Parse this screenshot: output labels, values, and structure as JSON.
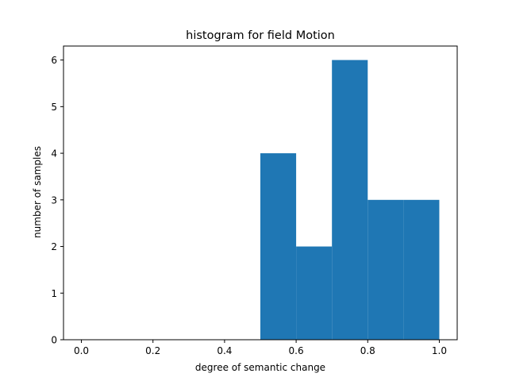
{
  "chart_data": {
    "type": "bar",
    "title": "histogram for field Motion",
    "xlabel": "degree of semantic change",
    "ylabel": "number of samples",
    "bins": [
      {
        "start": 0.5,
        "end": 0.6,
        "count": 4
      },
      {
        "start": 0.6,
        "end": 0.7,
        "count": 2
      },
      {
        "start": 0.7,
        "end": 0.8,
        "count": 6
      },
      {
        "start": 0.8,
        "end": 0.9,
        "count": 3
      },
      {
        "start": 0.9,
        "end": 1.0,
        "count": 3
      }
    ],
    "xlim": [
      -0.05,
      1.05
    ],
    "ylim": [
      0,
      6.3
    ],
    "xticks": [
      "0.0",
      "0.2",
      "0.4",
      "0.6",
      "0.8",
      "1.0"
    ],
    "yticks": [
      "0",
      "1",
      "2",
      "3",
      "4",
      "5",
      "6"
    ],
    "grid": false,
    "bar_color": "#1f77b4"
  }
}
